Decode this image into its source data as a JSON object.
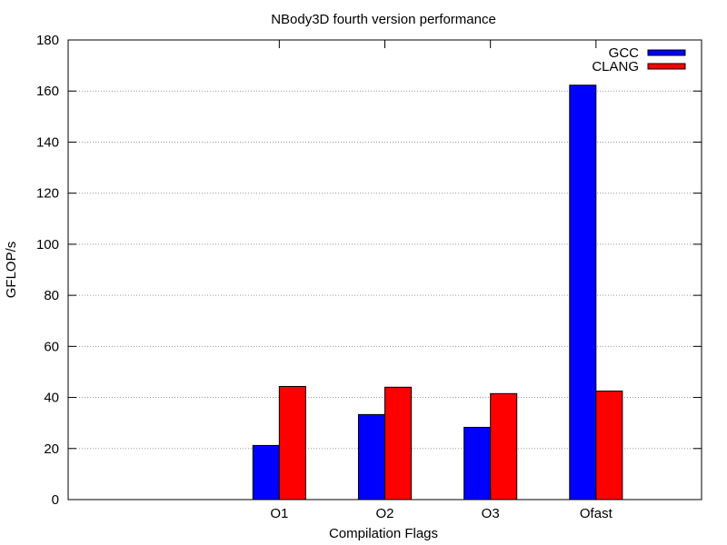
{
  "chart_data": {
    "type": "bar",
    "title": "NBody3D fourth version performance",
    "xlabel": "Compilation Flags",
    "ylabel": "GFLOP/s",
    "categories": [
      "O1",
      "O2",
      "O3",
      "Ofast"
    ],
    "ylim": [
      0,
      180
    ],
    "yticks": [
      0,
      20,
      40,
      60,
      80,
      100,
      120,
      140,
      160,
      180
    ],
    "grid": "horizontal-dotted",
    "legend_position": "top-right",
    "series": [
      {
        "name": "GCC",
        "color": "#0000ff",
        "values": [
          21.2,
          33.3,
          28.3,
          162.3
        ]
      },
      {
        "name": "CLANG",
        "color": "#ff0000",
        "values": [
          44.3,
          44.0,
          41.5,
          42.5
        ]
      }
    ]
  }
}
